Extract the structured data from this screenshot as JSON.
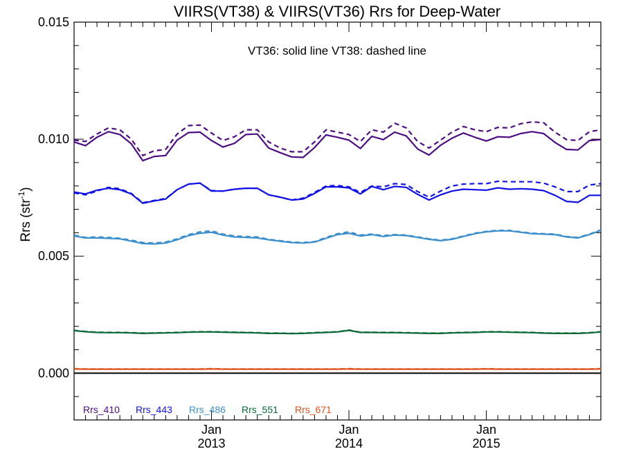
{
  "chart_data": {
    "type": "line",
    "title": "VIIRS(VT38) & VIIRS(VT36)  Rrs for Deep-Water",
    "ylabel": "Rrs (str",
    "ylabel_sup": "-1",
    "ylabel_close": ")",
    "annotation": "VT36: solid line   VT38: dashed line",
    "ylim": [
      -0.002,
      0.015
    ],
    "xlim": [
      "2012-01",
      "2015-11"
    ],
    "yticks": [
      0.0,
      0.005,
      0.01,
      0.015
    ],
    "ytick_labels": [
      "0.000",
      "0.005",
      "0.010",
      "0.015"
    ],
    "xticks": [
      {
        "x": "2013-01",
        "month": "Jan",
        "year": "2013"
      },
      {
        "x": "2014-01",
        "month": "Jan",
        "year": "2014"
      },
      {
        "x": "2015-01",
        "month": "Jan",
        "year": "2015"
      }
    ],
    "x": [
      "2012-01",
      "2012-02",
      "2012-03",
      "2012-04",
      "2012-05",
      "2012-06",
      "2012-07",
      "2012-08",
      "2012-09",
      "2012-10",
      "2012-11",
      "2012-12",
      "2013-01",
      "2013-02",
      "2013-03",
      "2013-04",
      "2013-05",
      "2013-06",
      "2013-07",
      "2013-08",
      "2013-09",
      "2013-10",
      "2013-11",
      "2013-12",
      "2014-01",
      "2014-02",
      "2014-03",
      "2014-04",
      "2014-05",
      "2014-06",
      "2014-07",
      "2014-08",
      "2014-09",
      "2014-10",
      "2014-11",
      "2014-12",
      "2015-01",
      "2015-02",
      "2015-03",
      "2015-04",
      "2015-05",
      "2015-06",
      "2015-07",
      "2015-08",
      "2015-09",
      "2015-10",
      "2015-11"
    ],
    "zero_line": 0.0,
    "series": [
      {
        "name": "Rrs_410",
        "sensor": "VT36",
        "style": "solid",
        "color": "#4b0c84",
        "values": [
          0.00988,
          0.00972,
          0.01008,
          0.01032,
          0.0102,
          0.0098,
          0.00908,
          0.00926,
          0.0093,
          0.00996,
          0.01028,
          0.0103,
          0.00994,
          0.00966,
          0.00982,
          0.0102,
          0.01022,
          0.00962,
          0.00942,
          0.00924,
          0.00922,
          0.00964,
          0.01018,
          0.01008,
          0.00996,
          0.0096,
          0.01012,
          0.00998,
          0.0103,
          0.01014,
          0.00958,
          0.00932,
          0.00974,
          0.01004,
          0.01026,
          0.01008,
          0.00992,
          0.0101,
          0.01008,
          0.01024,
          0.01032,
          0.01024,
          0.00986,
          0.00956,
          0.00954,
          0.00994,
          0.00998
        ]
      },
      {
        "name": "Rrs_410",
        "sensor": "VT38",
        "style": "dashed",
        "color": "#4b0c84",
        "values": [
          0.00996,
          0.0099,
          0.01022,
          0.01048,
          0.0104,
          0.01,
          0.0093,
          0.0095,
          0.00956,
          0.01022,
          0.01058,
          0.0106,
          0.01026,
          0.00994,
          0.0101,
          0.0104,
          0.0104,
          0.00988,
          0.00962,
          0.00946,
          0.00946,
          0.00988,
          0.0104,
          0.0103,
          0.0102,
          0.0099,
          0.0104,
          0.0103,
          0.01068,
          0.01048,
          0.0099,
          0.00962,
          0.00996,
          0.0103,
          0.01054,
          0.0104,
          0.01032,
          0.0105,
          0.01048,
          0.01066,
          0.01074,
          0.0107,
          0.0103,
          0.00998,
          0.00994,
          0.01032,
          0.0104
        ]
      },
      {
        "name": "Rrs_443",
        "sensor": "VT36",
        "style": "solid",
        "color": "#1010e8",
        "values": [
          0.00774,
          0.00766,
          0.00782,
          0.0079,
          0.00784,
          0.00766,
          0.00726,
          0.00736,
          0.00744,
          0.00784,
          0.00808,
          0.00812,
          0.00778,
          0.00778,
          0.00786,
          0.0079,
          0.0079,
          0.00762,
          0.00752,
          0.0074,
          0.00744,
          0.00768,
          0.00796,
          0.00796,
          0.00792,
          0.00766,
          0.00798,
          0.00784,
          0.00798,
          0.00794,
          0.00764,
          0.0074,
          0.00762,
          0.00778,
          0.00786,
          0.00784,
          0.00782,
          0.00792,
          0.00786,
          0.00788,
          0.00786,
          0.0078,
          0.0076,
          0.00734,
          0.0073,
          0.0076,
          0.0076
        ]
      },
      {
        "name": "Rrs_443",
        "sensor": "VT38",
        "style": "dashed",
        "color": "#1010e8",
        "values": [
          0.0077,
          0.00762,
          0.00778,
          0.00794,
          0.00788,
          0.00768,
          0.00728,
          0.00738,
          0.00746,
          0.00784,
          0.00808,
          0.00812,
          0.0078,
          0.00778,
          0.00786,
          0.0079,
          0.0079,
          0.00762,
          0.00752,
          0.0074,
          0.00748,
          0.00772,
          0.008,
          0.00802,
          0.00796,
          0.00772,
          0.008,
          0.00796,
          0.0081,
          0.00806,
          0.00776,
          0.00752,
          0.00778,
          0.008,
          0.00808,
          0.0081,
          0.0081,
          0.0082,
          0.00818,
          0.00818,
          0.00818,
          0.00812,
          0.00796,
          0.00776,
          0.00776,
          0.00804,
          0.0081
        ]
      },
      {
        "name": "Rrs_486",
        "sensor": "VT36",
        "style": "solid",
        "color": "#3a8fcc",
        "values": [
          0.00586,
          0.00578,
          0.00578,
          0.00576,
          0.00574,
          0.00564,
          0.00554,
          0.00552,
          0.00556,
          0.0057,
          0.00588,
          0.00598,
          0.00602,
          0.0059,
          0.00582,
          0.0058,
          0.00578,
          0.0057,
          0.00564,
          0.00558,
          0.00556,
          0.0056,
          0.00576,
          0.00592,
          0.00598,
          0.00586,
          0.00592,
          0.00584,
          0.0059,
          0.00588,
          0.0058,
          0.00572,
          0.00566,
          0.00572,
          0.00584,
          0.00596,
          0.00604,
          0.00608,
          0.00608,
          0.00602,
          0.00596,
          0.00594,
          0.00592,
          0.00582,
          0.00578,
          0.00592,
          0.0061
        ]
      },
      {
        "name": "Rrs_486",
        "sensor": "VT38",
        "style": "dashed",
        "color": "#3a8fcc",
        "values": [
          0.0059,
          0.0058,
          0.00582,
          0.0058,
          0.00576,
          0.00568,
          0.00558,
          0.00556,
          0.0056,
          0.00574,
          0.00592,
          0.00604,
          0.00608,
          0.00594,
          0.00586,
          0.00584,
          0.00582,
          0.00572,
          0.00566,
          0.0056,
          0.00558,
          0.00562,
          0.0058,
          0.00596,
          0.00604,
          0.0059,
          0.00594,
          0.00588,
          0.00592,
          0.0059,
          0.00582,
          0.00574,
          0.00568,
          0.00574,
          0.00586,
          0.00598,
          0.00606,
          0.0061,
          0.0061,
          0.00604,
          0.00598,
          0.00596,
          0.00594,
          0.00584,
          0.0058,
          0.00594,
          0.00612
        ]
      },
      {
        "name": "Rrs_551",
        "sensor": "VT36",
        "style": "solid",
        "color": "#0b6a38",
        "values": [
          0.00182,
          0.00177,
          0.00174,
          0.00173,
          0.00173,
          0.00172,
          0.0017,
          0.00171,
          0.00172,
          0.00173,
          0.00175,
          0.00176,
          0.00176,
          0.00175,
          0.00174,
          0.00173,
          0.00172,
          0.0017,
          0.0017,
          0.00169,
          0.0017,
          0.00172,
          0.00174,
          0.00176,
          0.00183,
          0.00174,
          0.00174,
          0.00173,
          0.00173,
          0.00172,
          0.00171,
          0.0017,
          0.0017,
          0.00172,
          0.00173,
          0.00174,
          0.00176,
          0.00176,
          0.00175,
          0.00174,
          0.00173,
          0.00171,
          0.0017,
          0.0017,
          0.0017,
          0.00172,
          0.00176
        ]
      },
      {
        "name": "Rrs_551",
        "sensor": "VT38",
        "style": "dashed",
        "color": "#0b6a38",
        "values": [
          0.00183,
          0.00178,
          0.00175,
          0.00174,
          0.00174,
          0.00173,
          0.00171,
          0.00172,
          0.00173,
          0.00174,
          0.00176,
          0.00177,
          0.00177,
          0.00176,
          0.00175,
          0.00174,
          0.00173,
          0.00171,
          0.00171,
          0.0017,
          0.00171,
          0.00173,
          0.00175,
          0.00177,
          0.00184,
          0.00175,
          0.00175,
          0.00174,
          0.00174,
          0.00173,
          0.00172,
          0.00171,
          0.00171,
          0.00173,
          0.00174,
          0.00175,
          0.00177,
          0.00177,
          0.00176,
          0.00175,
          0.00174,
          0.00172,
          0.00171,
          0.00171,
          0.00171,
          0.00173,
          0.00177
        ]
      },
      {
        "name": "Rrs_671",
        "sensor": "VT36",
        "style": "solid",
        "color": "#e0501c",
        "values": [
          0.00018,
          0.00017,
          0.00017,
          0.00017,
          0.00017,
          0.00017,
          0.00017,
          0.00017,
          0.00017,
          0.00017,
          0.00017,
          0.00017,
          0.00018,
          0.00017,
          0.00017,
          0.00017,
          0.00017,
          0.00017,
          0.00017,
          0.00017,
          0.00017,
          0.00017,
          0.00017,
          0.00017,
          0.00018,
          0.00017,
          0.00017,
          0.00017,
          0.00017,
          0.00017,
          0.00017,
          0.00017,
          0.00017,
          0.00017,
          0.00017,
          0.00017,
          0.00018,
          0.00017,
          0.00017,
          0.00017,
          0.00017,
          0.00017,
          0.00017,
          0.00017,
          0.00017,
          0.00017,
          0.00018
        ]
      },
      {
        "name": "Rrs_671",
        "sensor": "VT38",
        "style": "dashed",
        "color": "#e0501c",
        "values": [
          0.00019,
          0.00018,
          0.00018,
          0.00018,
          0.00018,
          0.00018,
          0.00018,
          0.00018,
          0.00018,
          0.00018,
          0.00018,
          0.00018,
          0.00019,
          0.00018,
          0.00018,
          0.00018,
          0.00018,
          0.00018,
          0.00018,
          0.00018,
          0.00018,
          0.00018,
          0.00018,
          0.00018,
          0.00019,
          0.00018,
          0.00018,
          0.00018,
          0.00018,
          0.00018,
          0.00018,
          0.00018,
          0.00018,
          0.00018,
          0.00018,
          0.00018,
          0.00019,
          0.00018,
          0.00018,
          0.00018,
          0.00018,
          0.00018,
          0.00018,
          0.00018,
          0.00018,
          0.00018,
          0.00019
        ]
      }
    ],
    "legend": [
      {
        "label": "Rrs_410",
        "color": "#4b0c84"
      },
      {
        "label": "Rrs_443",
        "color": "#1010e8"
      },
      {
        "label": "Rrs_486",
        "color": "#3a8fcc"
      },
      {
        "label": "Rrs_551",
        "color": "#0b6a38"
      },
      {
        "label": "Rrs_671",
        "color": "#e0501c"
      }
    ],
    "legend_position": "bottom-left",
    "grid": false
  }
}
